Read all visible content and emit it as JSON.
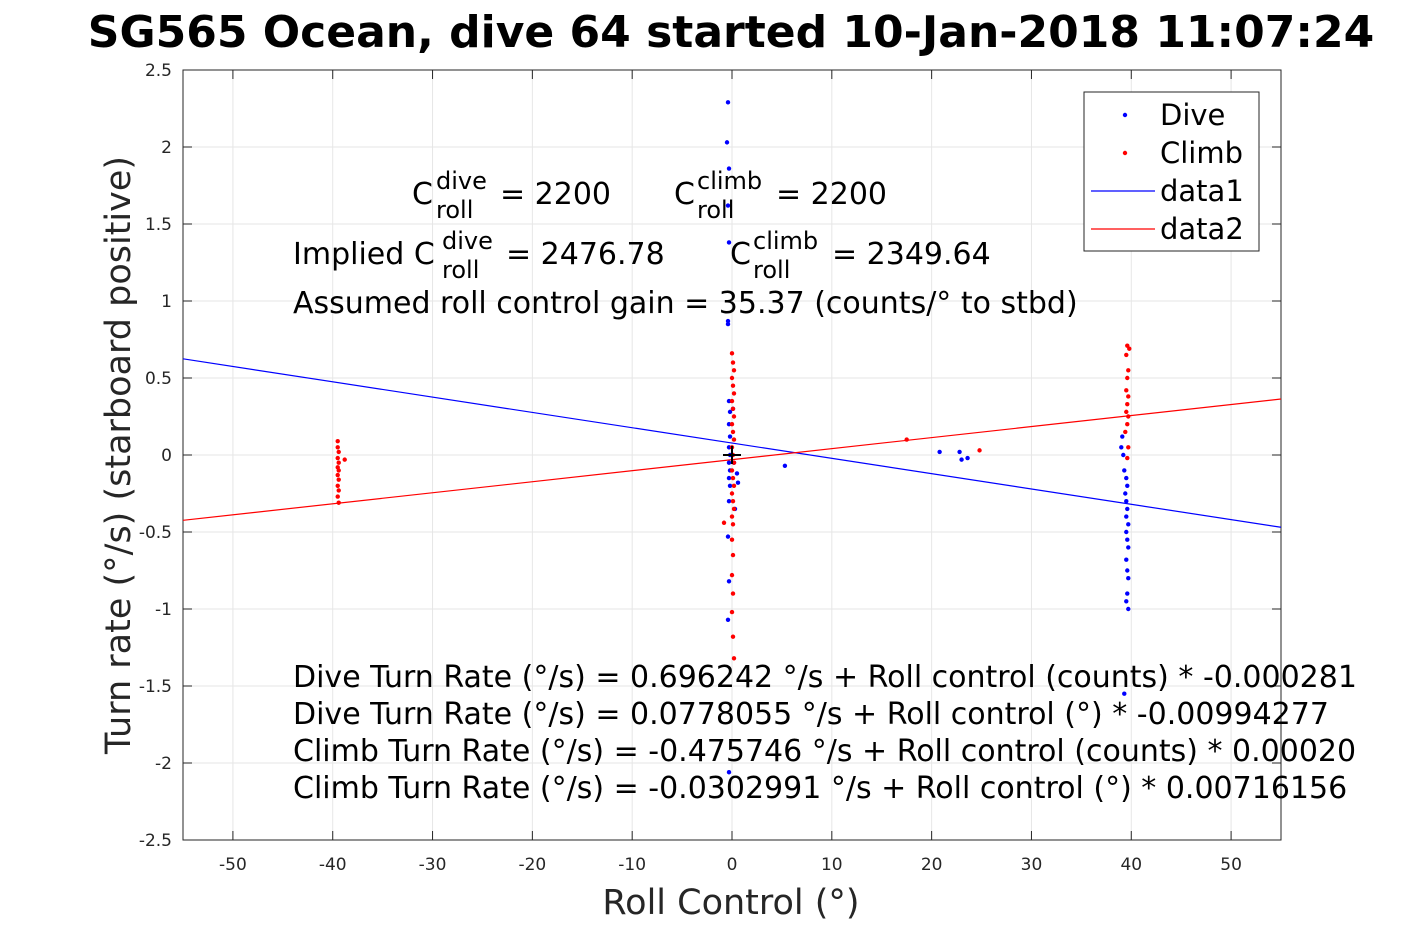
{
  "chart_data": {
    "type": "scatter",
    "title": "SG565 Ocean, dive 64 started 10-Jan-2018 11:07:24",
    "xlabel": "Roll Control (°)",
    "ylabel": "Turn rate (°/s) (starboard positive)",
    "xlim": [
      -55,
      55
    ],
    "ylim": [
      -2.5,
      2.5
    ],
    "xticks": [
      -50,
      -40,
      -30,
      -20,
      -10,
      0,
      10,
      20,
      30,
      40,
      50
    ],
    "yticks": [
      -2.5,
      -2,
      -1.5,
      -1,
      -0.5,
      0,
      0.5,
      1,
      1.5,
      2,
      2.5
    ],
    "grid": true,
    "legend_position": "top-right",
    "colors": {
      "dive": "#0000ff",
      "climb": "#ff0000",
      "marker": "#000000"
    },
    "series": [
      {
        "name": "Dive",
        "kind": "points",
        "color": "#0000ff",
        "points": [
          [
            -0.4,
            2.29
          ],
          [
            -0.5,
            2.03
          ],
          [
            -0.3,
            1.86
          ],
          [
            -0.4,
            1.62
          ],
          [
            -0.3,
            1.38
          ],
          [
            -0.4,
            0.87
          ],
          [
            -0.4,
            0.85
          ],
          [
            -0.3,
            0.35
          ],
          [
            -0.2,
            0.28
          ],
          [
            -0.3,
            0.2
          ],
          [
            -0.2,
            0.12
          ],
          [
            -0.3,
            0.05
          ],
          [
            -0.2,
            0.0
          ],
          [
            -0.3,
            -0.05
          ],
          [
            -0.2,
            -0.1
          ],
          [
            -0.3,
            -0.15
          ],
          [
            -0.2,
            -0.2
          ],
          [
            -0.3,
            -0.3
          ],
          [
            -0.4,
            -0.53
          ],
          [
            -0.3,
            -0.82
          ],
          [
            -0.4,
            -1.07
          ],
          [
            -0.3,
            -2.06
          ],
          [
            0.1,
            0.3
          ],
          [
            0.2,
            -0.05
          ],
          [
            0.5,
            -0.12
          ],
          [
            0.6,
            -0.18
          ],
          [
            0.3,
            -0.35
          ],
          [
            5.3,
            -0.07
          ],
          [
            20.8,
            0.02
          ],
          [
            22.8,
            0.02
          ],
          [
            23.0,
            -0.03
          ],
          [
            23.6,
            -0.02
          ],
          [
            39.1,
            0.12
          ],
          [
            39.0,
            0.05
          ],
          [
            39.2,
            0.0
          ],
          [
            39.3,
            -0.1
          ],
          [
            39.5,
            -0.15
          ],
          [
            39.6,
            -0.2
          ],
          [
            39.4,
            -0.25
          ],
          [
            39.5,
            -0.3
          ],
          [
            39.6,
            -0.35
          ],
          [
            39.5,
            -0.4
          ],
          [
            39.7,
            -0.45
          ],
          [
            39.5,
            -0.5
          ],
          [
            39.6,
            -0.55
          ],
          [
            39.7,
            -0.6
          ],
          [
            39.5,
            -0.68
          ],
          [
            39.6,
            -0.75
          ],
          [
            39.7,
            -0.8
          ],
          [
            39.6,
            -0.9
          ],
          [
            39.5,
            -0.95
          ],
          [
            39.7,
            -1.0
          ],
          [
            39.3,
            -1.55
          ]
        ]
      },
      {
        "name": "Climb",
        "kind": "points",
        "color": "#ff0000",
        "points": [
          [
            -39.5,
            0.09
          ],
          [
            -39.5,
            0.05
          ],
          [
            -39.4,
            0.02
          ],
          [
            -39.5,
            -0.02
          ],
          [
            -39.4,
            -0.05
          ],
          [
            -39.5,
            -0.08
          ],
          [
            -39.4,
            -0.1
          ],
          [
            -39.5,
            -0.13
          ],
          [
            -39.4,
            -0.16
          ],
          [
            -39.5,
            -0.2
          ],
          [
            -39.4,
            -0.23
          ],
          [
            -39.5,
            -0.27
          ],
          [
            -39.4,
            -0.31
          ],
          [
            -38.8,
            -0.03
          ],
          [
            0.0,
            0.66
          ],
          [
            0.1,
            0.6
          ],
          [
            0.2,
            0.55
          ],
          [
            0.0,
            0.5
          ],
          [
            0.1,
            0.45
          ],
          [
            0.2,
            0.4
          ],
          [
            0.0,
            0.35
          ],
          [
            0.1,
            0.3
          ],
          [
            0.2,
            0.25
          ],
          [
            0.0,
            0.2
          ],
          [
            0.1,
            0.15
          ],
          [
            0.2,
            0.1
          ],
          [
            0.0,
            0.05
          ],
          [
            0.1,
            0.0
          ],
          [
            0.2,
            -0.05
          ],
          [
            0.0,
            -0.1
          ],
          [
            0.1,
            -0.15
          ],
          [
            0.2,
            -0.2
          ],
          [
            0.0,
            -0.25
          ],
          [
            0.1,
            -0.3
          ],
          [
            0.2,
            -0.35
          ],
          [
            0.0,
            -0.4
          ],
          [
            0.1,
            -0.45
          ],
          [
            -0.8,
            -0.44
          ],
          [
            0.0,
            -0.55
          ],
          [
            0.1,
            -0.65
          ],
          [
            0.0,
            -0.78
          ],
          [
            0.1,
            -0.9
          ],
          [
            0.0,
            -1.02
          ],
          [
            0.1,
            -1.18
          ],
          [
            0.2,
            -1.32
          ],
          [
            17.5,
            0.1
          ],
          [
            24.8,
            0.03
          ],
          [
            39.6,
            0.71
          ],
          [
            39.8,
            0.69
          ],
          [
            39.5,
            0.65
          ],
          [
            39.7,
            0.55
          ],
          [
            39.6,
            0.5
          ],
          [
            39.5,
            0.42
          ],
          [
            39.7,
            0.38
          ],
          [
            39.6,
            0.33
          ],
          [
            39.5,
            0.28
          ],
          [
            39.7,
            0.25
          ],
          [
            39.6,
            0.2
          ],
          [
            39.4,
            0.15
          ],
          [
            39.7,
            0.05
          ],
          [
            39.6,
            -0.02
          ]
        ]
      },
      {
        "name": "data1",
        "kind": "line",
        "color": "#0000ff",
        "x": [
          -55,
          55
        ],
        "y": [
          0.6245,
          -0.4693
        ]
      },
      {
        "name": "data2",
        "kind": "line",
        "color": "#ff0000",
        "x": [
          -55,
          55
        ],
        "y": [
          -0.4242,
          0.3636
        ]
      }
    ],
    "annotations": {
      "c_dive": {
        "base": "C",
        "sup": "dive",
        "sub": "roll",
        "value": "= 2200"
      },
      "c_climb": {
        "base": "C",
        "sup": "climb",
        "sub": "roll",
        "value": "= 2200"
      },
      "implied_prefix": "Implied C",
      "implied_dive": {
        "sup": "dive",
        "sub": "roll",
        "value": "= 2476.78"
      },
      "implied_climb": {
        "base": "C",
        "sup": "climb",
        "sub": "roll",
        "value": "= 2349.64"
      },
      "gain": "Assumed roll control gain = 35.37 (counts/° to stbd)",
      "fits": [
        "Dive Turn Rate (°/s) = 0.696242 °/s + Roll control (counts) * -0.000281",
        "Dive Turn Rate (°/s) = 0.0778055 °/s + Roll control (°) * -0.00994277",
        "Climb Turn Rate (°/s) = -0.475746 °/s + Roll control (counts) * 0.00020",
        "Climb Turn Rate (°/s) = -0.0302991 °/s + Roll control (°) * 0.00716156"
      ]
    }
  }
}
